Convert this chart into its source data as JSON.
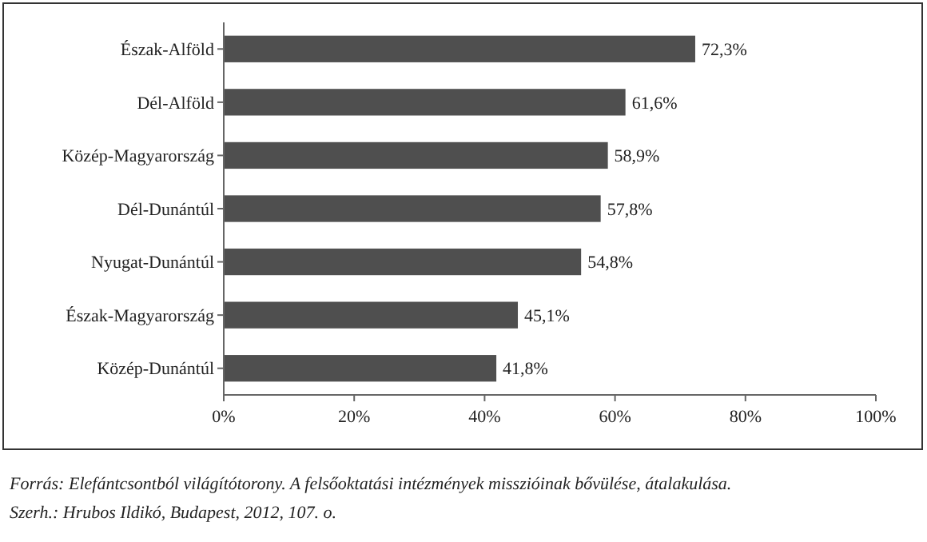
{
  "chart_data": {
    "type": "bar",
    "orientation": "horizontal",
    "categories": [
      "Észak-Alföld",
      "Dél-Alföld",
      "Közép-Magyarország",
      "Dél-Dunántúl",
      "Nyugat-Dunántúl",
      "Észak-Magyarország",
      "Közép-Dunántúl"
    ],
    "values": [
      72.3,
      61.6,
      58.9,
      57.8,
      54.8,
      45.1,
      41.8
    ],
    "value_labels": [
      "72,3%",
      "61,6%",
      "58,9%",
      "57,8%",
      "54,8%",
      "45,1%",
      "41,8%"
    ],
    "color": "#4f4f4f",
    "xlim": [
      0,
      100
    ],
    "xticks": [
      {
        "value": 0,
        "label": "0%"
      },
      {
        "value": 20,
        "label": "20%"
      },
      {
        "value": 40,
        "label": "40%"
      },
      {
        "value": 60,
        "label": "60%"
      },
      {
        "value": 80,
        "label": "80%"
      },
      {
        "value": 100,
        "label": "100%"
      }
    ],
    "grid": false,
    "annotations": [
      "Forrás: Elefántcsontból világítótorony. A felsőoktatási intézmények misszióinak bővülése, átalakulása.",
      "Szerh.: Hrubos Ildikó, Budapest, 2012, 107. o."
    ]
  }
}
